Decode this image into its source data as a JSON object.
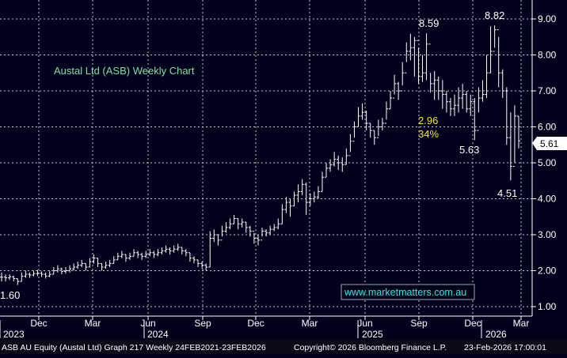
{
  "chart_data": {
    "type": "ohlc",
    "title": "Austal Ltd (ASB) Weekly Chart",
    "y_axis": {
      "side": "right",
      "ylim": [
        0.8,
        9.6
      ],
      "ticks": [
        "1.00",
        "2.00",
        "3.00",
        "4.00",
        "5.00",
        "6.00",
        "7.00",
        "8.00",
        "9.00"
      ]
    },
    "x_axis": {
      "months": [
        "Dec",
        "Mar",
        "Jun",
        "Sep",
        "Dec",
        "Mar",
        "Jun",
        "Sep",
        "Dec",
        "Mar"
      ],
      "years": [
        "2023",
        "2024",
        "2025",
        "2026"
      ]
    },
    "grid": true,
    "last_price": "5.61",
    "annotations": {
      "low_start": "1.60",
      "high_1": "8.59",
      "high_2": "8.82",
      "low_1": "5.63",
      "low_2": "4.51",
      "drop_amount": "2.96",
      "drop_pct": "34%"
    },
    "watermark": "www.marketmatters.com.au",
    "source_line_left": "ASB AU Equity (Austal Ltd) Graph 217 Weekly 24FEB2021-23FEB2026",
    "source_line_mid": "Copyright© 2026 Bloomberg Finance L.P.",
    "source_line_right": "23-Feb-2026 17:00:01",
    "weeks_start": "2023-10-02",
    "closes": [
      1.82,
      1.8,
      1.83,
      1.78,
      1.7,
      1.85,
      1.9,
      1.88,
      1.92,
      1.93,
      1.9,
      1.85,
      1.9,
      2.0,
      2.05,
      1.98,
      2.0,
      2.05,
      2.1,
      2.15,
      2.2,
      2.1,
      2.25,
      2.35,
      2.2,
      2.1,
      2.15,
      2.2,
      2.3,
      2.4,
      2.45,
      2.35,
      2.4,
      2.5,
      2.45,
      2.4,
      2.45,
      2.5,
      2.45,
      2.5,
      2.55,
      2.6,
      2.55,
      2.6,
      2.65,
      2.55,
      2.5,
      2.35,
      2.3,
      2.2,
      2.15,
      2.1,
      2.9,
      3.0,
      2.85,
      3.1,
      3.2,
      3.3,
      3.45,
      3.3,
      3.35,
      3.2,
      3.1,
      2.9,
      2.85,
      3.1,
      3.05,
      3.15,
      3.2,
      3.3,
      3.7,
      3.9,
      3.8,
      4.1,
      4.2,
      4.4,
      3.9,
      4.0,
      4.05,
      4.2,
      4.6,
      4.85,
      4.95,
      5.1,
      5.0,
      4.95,
      5.2,
      5.6,
      6.0,
      6.3,
      6.4,
      6.1,
      5.9,
      5.7,
      6.0,
      6.1,
      6.5,
      6.8,
      7.2,
      7.0,
      7.5,
      8.1,
      8.2,
      8.4,
      7.4,
      7.5,
      8.3,
      7.2,
      7.3,
      7.0,
      6.9,
      6.7,
      6.5,
      6.6,
      6.8,
      6.9,
      6.5,
      6.7,
      5.9,
      6.8,
      6.9,
      7.5,
      8.1,
      8.7,
      7.5,
      7.0,
      5.7,
      4.9,
      6.3,
      5.61
    ],
    "ranges": [
      [
        1.7,
        1.95
      ],
      [
        1.7,
        1.9
      ],
      [
        1.74,
        1.9
      ],
      [
        1.7,
        1.86
      ],
      [
        1.6,
        1.78
      ],
      [
        1.7,
        1.95
      ],
      [
        1.8,
        2.0
      ],
      [
        1.8,
        1.95
      ],
      [
        1.84,
        2.0
      ],
      [
        1.85,
        2.02
      ],
      [
        1.82,
        1.98
      ],
      [
        1.78,
        1.95
      ],
      [
        1.82,
        2.0
      ],
      [
        1.9,
        2.1
      ],
      [
        1.95,
        2.15
      ],
      [
        1.9,
        2.08
      ],
      [
        1.92,
        2.1
      ],
      [
        1.95,
        2.15
      ],
      [
        2.0,
        2.2
      ],
      [
        2.05,
        2.25
      ],
      [
        2.1,
        2.3
      ],
      [
        2.0,
        2.2
      ],
      [
        2.1,
        2.35
      ],
      [
        2.2,
        2.45
      ],
      [
        2.1,
        2.35
      ],
      [
        2.0,
        2.2
      ],
      [
        2.05,
        2.25
      ],
      [
        2.1,
        2.3
      ],
      [
        2.2,
        2.4
      ],
      [
        2.3,
        2.5
      ],
      [
        2.35,
        2.55
      ],
      [
        2.25,
        2.45
      ],
      [
        2.3,
        2.5
      ],
      [
        2.4,
        2.6
      ],
      [
        2.35,
        2.55
      ],
      [
        2.3,
        2.5
      ],
      [
        2.35,
        2.55
      ],
      [
        2.4,
        2.6
      ],
      [
        2.35,
        2.55
      ],
      [
        2.4,
        2.6
      ],
      [
        2.45,
        2.65
      ],
      [
        2.5,
        2.7
      ],
      [
        2.45,
        2.65
      ],
      [
        2.5,
        2.7
      ],
      [
        2.55,
        2.75
      ],
      [
        2.45,
        2.65
      ],
      [
        2.4,
        2.6
      ],
      [
        2.25,
        2.5
      ],
      [
        2.2,
        2.4
      ],
      [
        2.1,
        2.3
      ],
      [
        2.05,
        2.25
      ],
      [
        2.0,
        2.2
      ],
      [
        2.1,
        3.1
      ],
      [
        2.8,
        3.15
      ],
      [
        2.7,
        3.0
      ],
      [
        2.95,
        3.25
      ],
      [
        3.05,
        3.35
      ],
      [
        3.15,
        3.45
      ],
      [
        3.3,
        3.55
      ],
      [
        3.15,
        3.45
      ],
      [
        3.2,
        3.45
      ],
      [
        3.05,
        3.35
      ],
      [
        2.95,
        3.25
      ],
      [
        2.75,
        3.05
      ],
      [
        2.7,
        3.0
      ],
      [
        2.95,
        3.2
      ],
      [
        2.95,
        3.15
      ],
      [
        3.0,
        3.25
      ],
      [
        3.1,
        3.3
      ],
      [
        3.15,
        3.45
      ],
      [
        3.3,
        3.85
      ],
      [
        3.6,
        4.05
      ],
      [
        3.5,
        4.0
      ],
      [
        3.8,
        4.2
      ],
      [
        3.9,
        4.4
      ],
      [
        4.1,
        4.55
      ],
      [
        3.55,
        4.45
      ],
      [
        3.8,
        4.15
      ],
      [
        3.9,
        4.2
      ],
      [
        4.0,
        4.35
      ],
      [
        4.2,
        4.75
      ],
      [
        4.6,
        5.0
      ],
      [
        4.75,
        5.1
      ],
      [
        4.9,
        5.3
      ],
      [
        4.8,
        5.2
      ],
      [
        4.75,
        5.15
      ],
      [
        4.95,
        5.4
      ],
      [
        5.3,
        5.8
      ],
      [
        5.7,
        6.15
      ],
      [
        6.0,
        6.55
      ],
      [
        6.2,
        6.65
      ],
      [
        5.9,
        6.45
      ],
      [
        5.7,
        6.1
      ],
      [
        5.5,
        5.9
      ],
      [
        5.75,
        6.2
      ],
      [
        5.9,
        6.25
      ],
      [
        6.2,
        6.7
      ],
      [
        6.5,
        7.0
      ],
      [
        6.9,
        7.45
      ],
      [
        6.75,
        7.25
      ],
      [
        7.15,
        7.8
      ],
      [
        7.8,
        8.35
      ],
      [
        7.85,
        8.59
      ],
      [
        7.4,
        8.5
      ],
      [
        7.2,
        8.2
      ],
      [
        7.25,
        8.0
      ],
      [
        7.3,
        8.6
      ],
      [
        6.95,
        7.5
      ],
      [
        6.75,
        7.55
      ],
      [
        6.75,
        7.4
      ],
      [
        6.5,
        7.3
      ],
      [
        6.4,
        7.0
      ],
      [
        6.3,
        6.8
      ],
      [
        6.3,
        6.9
      ],
      [
        6.4,
        7.1
      ],
      [
        6.5,
        7.2
      ],
      [
        6.4,
        7.0
      ],
      [
        6.3,
        6.9
      ],
      [
        5.63,
        6.8
      ],
      [
        6.4,
        7.1
      ],
      [
        6.7,
        7.3
      ],
      [
        6.8,
        8.0
      ],
      [
        7.5,
        8.8
      ],
      [
        8.2,
        8.82
      ],
      [
        7.1,
        8.5
      ],
      [
        6.8,
        7.6
      ],
      [
        5.5,
        7.1
      ],
      [
        4.51,
        6.4
      ],
      [
        5.0,
        6.6
      ],
      [
        5.4,
        6.3
      ]
    ]
  }
}
